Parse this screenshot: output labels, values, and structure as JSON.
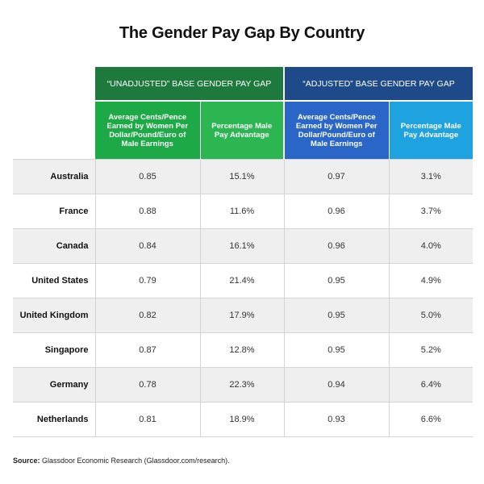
{
  "title": "The Gender Pay Gap By Country",
  "chart_data": {
    "type": "table",
    "title": "The Gender Pay Gap By Country",
    "groups": [
      {
        "label": "“UNADJUSTED” BASE GENDER PAY GAP",
        "color": "#1e7a3c"
      },
      {
        "label": "“ADJUSTED” BASE GENDER PAY GAP",
        "color": "#1f4a8a"
      }
    ],
    "columns": [
      "Average Cents/Pence Earned by Women Per Dollar/Pound/Euro of Male Earnings",
      "Percentage Male Pay Advantage",
      "Average Cents/Pence Earned by Women Per Dollar/Pound/Euro of Male Earnings",
      "Percentage Male Pay Advantage"
    ],
    "rows": [
      {
        "country": "Australia",
        "values": [
          "0.85",
          "15.1%",
          "0.97",
          "3.1%"
        ]
      },
      {
        "country": "France",
        "values": [
          "0.88",
          "11.6%",
          "0.96",
          "3.7%"
        ]
      },
      {
        "country": "Canada",
        "values": [
          "0.84",
          "16.1%",
          "0.96",
          "4.0%"
        ]
      },
      {
        "country": "United States",
        "values": [
          "0.79",
          "21.4%",
          "0.95",
          "4.9%"
        ]
      },
      {
        "country": "United Kingdom",
        "values": [
          "0.82",
          "17.9%",
          "0.95",
          "5.0%"
        ]
      },
      {
        "country": "Singapore",
        "values": [
          "0.87",
          "12.8%",
          "0.95",
          "5.2%"
        ]
      },
      {
        "country": "Germany",
        "values": [
          "0.78",
          "22.3%",
          "0.94",
          "6.4%"
        ]
      },
      {
        "country": "Netherlands",
        "values": [
          "0.81",
          "18.9%",
          "0.93",
          "6.6%"
        ]
      }
    ]
  },
  "source": {
    "label": "Source:",
    "text": " Glassdoor Economic Research (Glassdoor.com/research)."
  }
}
